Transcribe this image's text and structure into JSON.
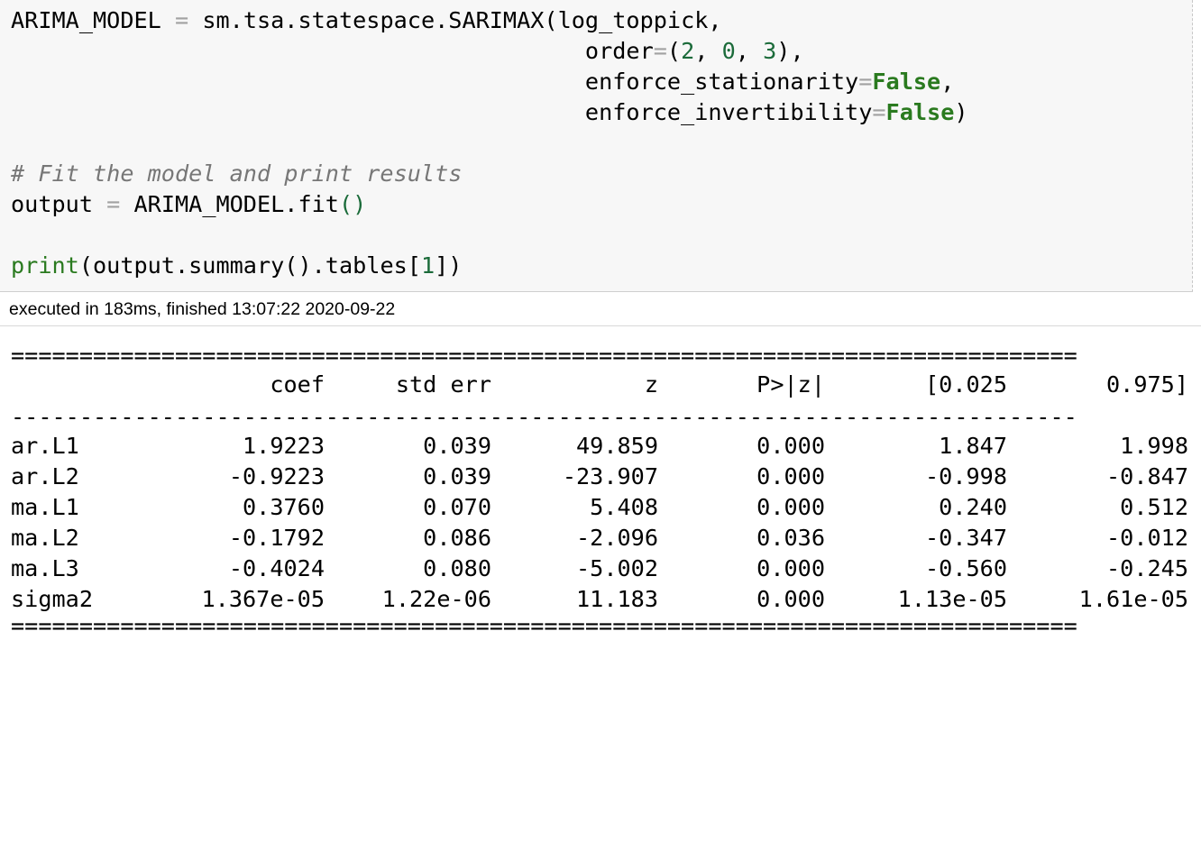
{
  "code": {
    "line1": {
      "a": "ARIMA_MODEL ",
      "eq": "=",
      "b": " sm.tsa.statespace.SARIMAX(log_toppick,"
    },
    "line2": {
      "indent": "                                          ",
      "a": "order",
      "eq": "=",
      "p1": "(",
      "n1": "2",
      "c1": ", ",
      "n2": "0",
      "c2": ", ",
      "n3": "3",
      "p2": "),"
    },
    "line3": {
      "indent": "                                          ",
      "a": "enforce_stationarity",
      "eq": "=",
      "kw": "False",
      "tail": ","
    },
    "line4": {
      "indent": "                                          ",
      "a": "enforce_invertibility",
      "eq": "=",
      "kw": "False",
      "tail": ")"
    },
    "comment": "# Fit the model and print results",
    "line6": {
      "a": "output ",
      "eq": "=",
      "b": " ARIMA_MODEL.fit",
      "paren": "()"
    },
    "line8": {
      "fn": "print",
      "a": "(output.summary().tables[",
      "n": "1",
      "b": "])"
    }
  },
  "exec_status": "executed in 183ms, finished 13:07:22 2020-09-22",
  "table": {
    "double_rule": "==============================================================================",
    "single_rule": "------------------------------------------------------------------------------",
    "headers": [
      "coef",
      "std err",
      "z",
      "P>|z|",
      "[0.025",
      "0.975]"
    ],
    "rows": [
      {
        "name": "ar.L1",
        "values": [
          "1.9223",
          "0.039",
          "49.859",
          "0.000",
          "1.847",
          "1.998"
        ]
      },
      {
        "name": "ar.L2",
        "values": [
          "-0.9223",
          "0.039",
          "-23.907",
          "0.000",
          "-0.998",
          "-0.847"
        ]
      },
      {
        "name": "ma.L1",
        "values": [
          "0.3760",
          "0.070",
          "5.408",
          "0.000",
          "0.240",
          "0.512"
        ]
      },
      {
        "name": "ma.L2",
        "values": [
          "-0.1792",
          "0.086",
          "-2.096",
          "0.036",
          "-0.347",
          "-0.012"
        ]
      },
      {
        "name": "ma.L3",
        "values": [
          "-0.4024",
          "0.080",
          "-5.002",
          "0.000",
          "-0.560",
          "-0.245"
        ]
      },
      {
        "name": "sigma2",
        "values": [
          "1.367e-05",
          "1.22e-06",
          "11.183",
          "0.000",
          "1.13e-05",
          "1.61e-05"
        ]
      }
    ]
  }
}
